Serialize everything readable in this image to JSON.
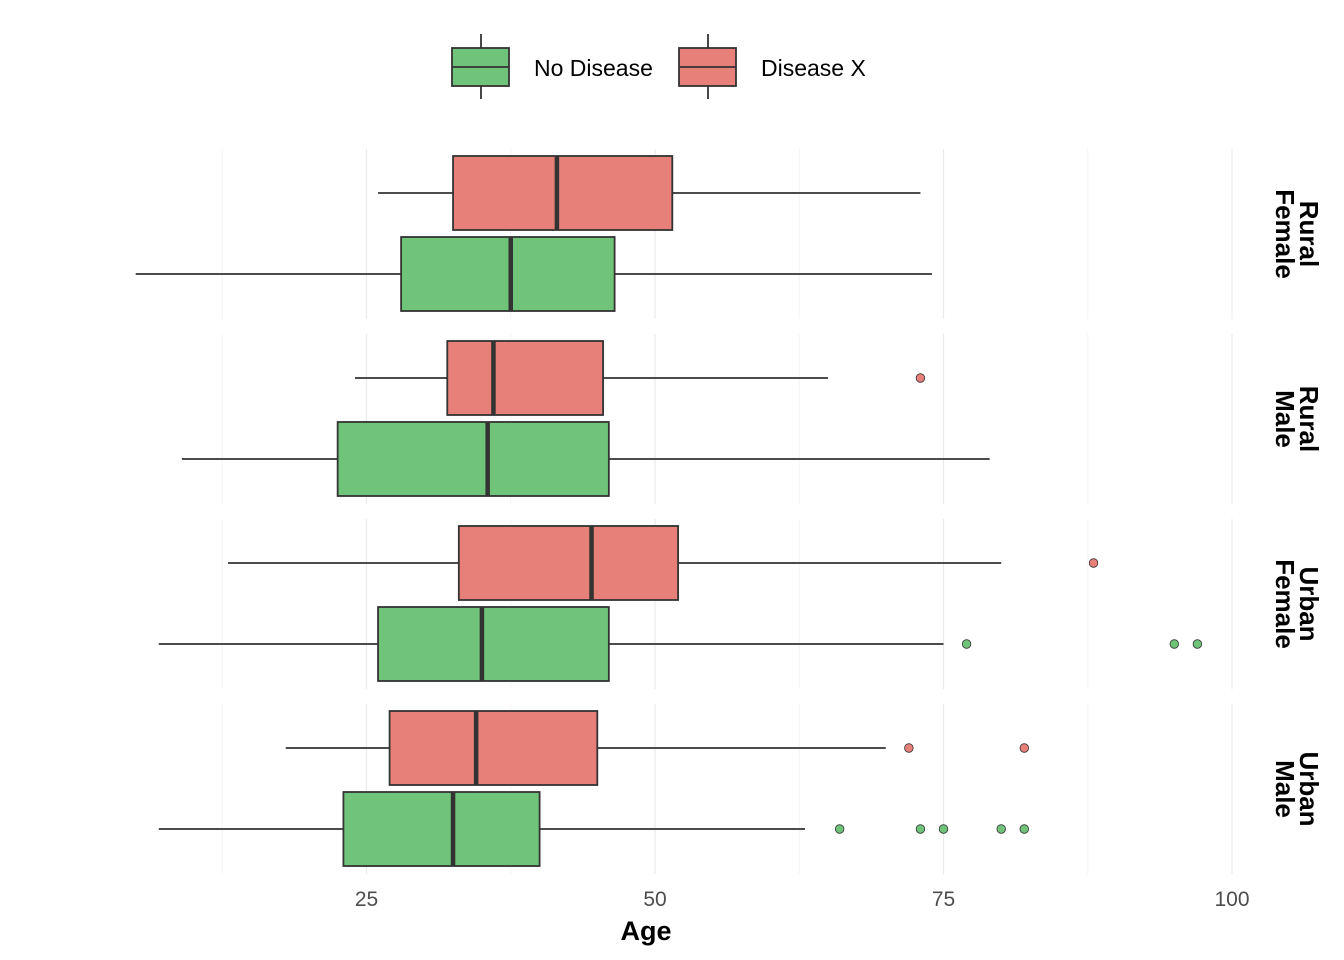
{
  "chart_data": {
    "type": "boxplot",
    "orientation": "horizontal",
    "xlabel": "Age",
    "xlim": [
      0,
      100
    ],
    "x_ticks": [
      25,
      50,
      75,
      100
    ],
    "grid": true,
    "legend_position": "top",
    "series": [
      {
        "name": "No Disease",
        "color": "#70c47a"
      },
      {
        "name": "Disease X",
        "color": "#e8807a"
      }
    ],
    "panels": [
      {
        "label": "Rural\nFemale",
        "boxes": [
          {
            "series": "Disease X",
            "min": 26,
            "q1": 32.5,
            "median": 41.5,
            "q3": 51.5,
            "max": 73,
            "outliers": []
          },
          {
            "series": "No Disease",
            "min": 5,
            "q1": 28,
            "median": 37.5,
            "q3": 46.5,
            "max": 74,
            "outliers": []
          }
        ]
      },
      {
        "label": "Rural\nMale",
        "boxes": [
          {
            "series": "Disease X",
            "min": 24,
            "q1": 32,
            "median": 36,
            "q3": 45.5,
            "max": 65,
            "outliers": [
              73
            ]
          },
          {
            "series": "No Disease",
            "min": 9,
            "q1": 22.5,
            "median": 35.5,
            "q3": 46,
            "max": 79,
            "outliers": []
          }
        ]
      },
      {
        "label": "Urban\nFemale",
        "boxes": [
          {
            "series": "Disease X",
            "min": 13,
            "q1": 33,
            "median": 44.5,
            "q3": 52,
            "max": 80,
            "outliers": [
              88
            ]
          },
          {
            "series": "No Disease",
            "min": 7,
            "q1": 26,
            "median": 35,
            "q3": 46,
            "max": 75,
            "outliers": [
              77,
              95,
              97
            ]
          }
        ]
      },
      {
        "label": "Urban\nMale",
        "boxes": [
          {
            "series": "Disease X",
            "min": 18,
            "q1": 27,
            "median": 34.5,
            "q3": 45,
            "max": 70,
            "outliers": [
              72,
              82
            ]
          },
          {
            "series": "No Disease",
            "min": 7,
            "q1": 23,
            "median": 32.5,
            "q3": 40,
            "max": 63,
            "outliers": [
              66,
              73,
              75,
              80,
              82
            ]
          }
        ]
      }
    ]
  }
}
